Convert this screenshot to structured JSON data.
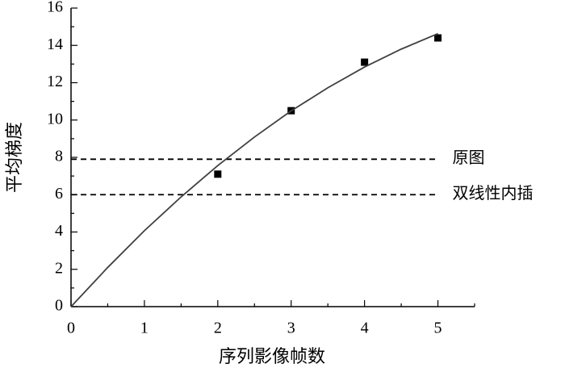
{
  "chart_data": {
    "type": "scatter",
    "xlabel": "序列影像帧数",
    "ylabel": "平均梯度",
    "xlim": [
      0,
      5.5
    ],
    "ylim": [
      0,
      16
    ],
    "xticks": [
      0,
      1,
      2,
      3,
      4,
      5
    ],
    "yticks": [
      0,
      2,
      4,
      6,
      8,
      10,
      12,
      14,
      16
    ],
    "xminorticks": [
      0.5,
      1.5,
      2.5,
      3.5,
      4.5,
      5.5
    ],
    "yminorticks": [
      1,
      3,
      5,
      7,
      9,
      11,
      13,
      15
    ],
    "series": [
      {
        "type": "scatter",
        "color": "#000000",
        "x": [
          2,
          3,
          4,
          5
        ],
        "values": [
          7.1,
          10.5,
          13.1,
          14.4
        ]
      },
      {
        "type": "line",
        "color": "#404040",
        "x": [
          0,
          0.5,
          1,
          1.5,
          2,
          2.5,
          3,
          3.5,
          4,
          4.5,
          5
        ],
        "values": [
          0,
          2.1,
          4.07,
          5.88,
          7.56,
          9.09,
          10.49,
          11.73,
          12.84,
          13.8,
          14.63
        ]
      }
    ],
    "hlines": [
      {
        "value": 7.9,
        "label": "原图"
      },
      {
        "value": 6,
        "label": "双线性内插"
      }
    ]
  }
}
